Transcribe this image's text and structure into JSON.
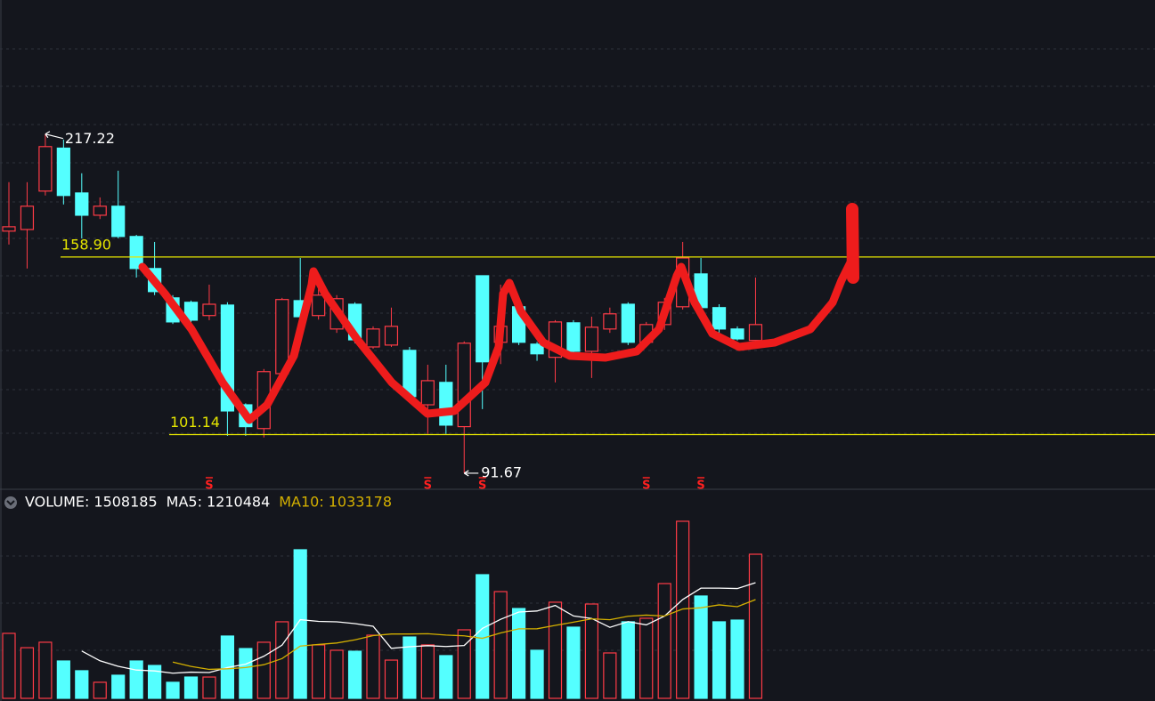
{
  "chart_data": [
    {
      "type": "candlestick",
      "log_scale": true,
      "ylim": [
        88,
        305.5
      ],
      "up_color": "#ff3b46",
      "down_color": "#54ffff",
      "open": [
        169.7,
        170.4,
        187.9,
        209.6,
        187.0,
        176.7,
        180.8,
        167.4,
        154.3,
        143.2,
        141.6,
        136.9,
        140.6,
        109.1,
        102.7,
        118.1,
        142.2,
        136.9,
        132.3,
        140.9,
        126.4,
        127.0,
        125.3,
        109.1,
        115.5,
        103.2,
        151.5,
        127.9,
        140.0,
        127.3,
        123.1,
        134.4,
        125.0,
        132.3,
        140.9,
        127.9,
        133.8,
        140.0,
        152.2,
        139.7,
        132.3,
        128.5
      ],
      "high": [
        192.2,
        192.2,
        217.22,
        214.2,
        196.6,
        184.9,
        197.9,
        168.1,
        165.1,
        144.2,
        142.2,
        148.1,
        141.6,
        109.5,
        119.5,
        143.2,
        158.5,
        148.8,
        144.2,
        141.6,
        133.2,
        139.7,
        126.4,
        120.8,
        120.8,
        128.2,
        151.5,
        148.1,
        141.0,
        128.0,
        135.3,
        135.3,
        136.5,
        139.7,
        141.6,
        134.7,
        143.2,
        165.1,
        158.5,
        140.9,
        133.2,
        150.8
      ],
      "low": [
        164.0,
        154.3,
        185.8,
        181.6,
        166.6,
        175.0,
        166.6,
        150.8,
        144.2,
        134.0,
        134.4,
        135.3,
        100.8,
        100.8,
        100.4,
        117.5,
        135.3,
        135.5,
        131.0,
        127.6,
        125.8,
        126.4,
        110.0,
        101.3,
        101.3,
        91.67,
        107.9,
        121.0,
        127.0,
        122.0,
        115.5,
        124.0,
        116.8,
        131.0,
        127.0,
        127.0,
        132.0,
        139.0,
        139.0,
        131.0,
        128.5,
        128.0
      ],
      "close": [
        171.6,
        180.8,
        210.4,
        185.8,
        176.7,
        180.8,
        167.4,
        154.3,
        145.5,
        134.7,
        135.3,
        140.9,
        107.4,
        103.2,
        118.7,
        142.6,
        136.5,
        144.2,
        142.9,
        128.7,
        132.3,
        133.2,
        111.4,
        116.0,
        103.6,
        127.6,
        121.7,
        133.2,
        127.9,
        124.2,
        134.7,
        125.0,
        132.9,
        137.5,
        127.9,
        133.8,
        141.6,
        158.5,
        139.7,
        132.3,
        129.0,
        133.8
      ],
      "high_label": 217.22,
      "low_label": 91.67,
      "levels": [
        {
          "value": 158.9,
          "label": "158.90"
        },
        101.14
      ],
      "level_color": "#e6e600",
      "signals": [
        "S",
        "S",
        "S",
        "S",
        "S"
      ],
      "signal_color": "#ff2020"
    },
    {
      "type": "bar",
      "ylim": [
        0,
        1862000
      ],
      "series": [
        {
          "name": "VOLUME:",
          "color": "#ffffff",
          "values": [
            680000,
            530000,
            587000,
            391000,
            289000,
            168000,
            242000,
            391000,
            344000,
            168000,
            223000,
            223000,
            652000,
            521000,
            587000,
            801000,
            1555000,
            559000,
            503000,
            493000,
            661000,
            400000,
            642000,
            559000,
            447000,
            717000,
            1294000,
            1117000,
            940000,
            503000,
            1006000,
            745000,
            987000,
            475000,
            801000,
            838000,
            1201000,
            1853000,
            1071000,
            801000,
            819000,
            1508185
          ]
        },
        {
          "name": "MA5:",
          "color": "#ffffff",
          "values": [
            null,
            null,
            null,
            null,
            495000,
            393000,
            335000,
            296000,
            287000,
            263000,
            274000,
            270000,
            322000,
            357000,
            441000,
            557000,
            823000,
            805000,
            801000,
            782000,
            754000,
            523000,
            540000,
            551000,
            542000,
            553000,
            732000,
            827000,
            903000,
            914000,
            972000,
            862000,
            836000,
            743000,
            803000,
            769000,
            860000,
            1034000,
            1153000,
            1153000,
            1149000,
            1210484
          ]
        },
        {
          "name": "MA10:",
          "color": "#d4b000",
          "values": [
            null,
            null,
            null,
            null,
            null,
            null,
            null,
            null,
            null,
            379000,
            334000,
            303000,
            309000,
            322000,
            352000,
            416000,
            547000,
            564000,
            579000,
            612000,
            656000,
            673000,
            673000,
            676000,
            662000,
            654000,
            628000,
            684000,
            727000,
            728000,
            763000,
            797000,
            832000,
            823000,
            859000,
            871000,
            861000,
            935000,
            948000,
            978000,
            959000,
            1033178
          ]
        }
      ]
    }
  ]
}
